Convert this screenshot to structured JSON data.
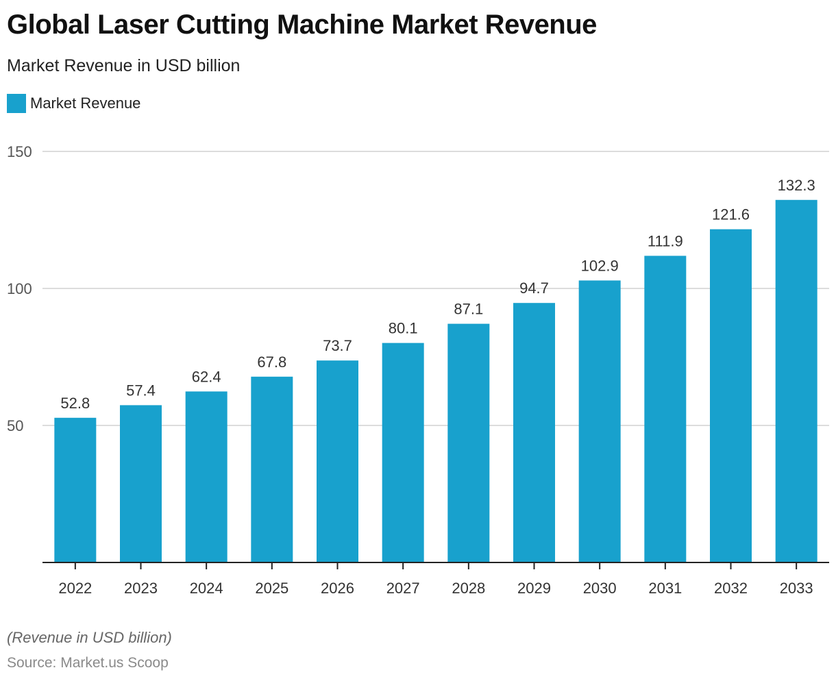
{
  "title": "Global Laser Cutting Machine Market Revenue",
  "subtitle": "Market Revenue in USD billion",
  "note": "(Revenue in USD billion)",
  "source": "Source: Market.us Scoop",
  "colors": {
    "bar": "#18a1cd",
    "grid": "#d0d0d0",
    "axis": "#222222"
  },
  "chart_data": {
    "type": "bar",
    "categories": [
      "2022",
      "2023",
      "2024",
      "2025",
      "2026",
      "2027",
      "2028",
      "2029",
      "2030",
      "2031",
      "2032",
      "2033"
    ],
    "series": [
      {
        "name": "Market Revenue",
        "values": [
          52.8,
          57.4,
          62.4,
          67.8,
          73.7,
          80.1,
          87.1,
          94.7,
          102.9,
          111.9,
          121.6,
          132.3
        ]
      }
    ],
    "data_labels": [
      "52.8",
      "57.4",
      "62.4",
      "67.8",
      "73.7",
      "80.1",
      "87.1",
      "94.7",
      "102.9",
      "111.9",
      "121.6",
      "132.3"
    ],
    "yticks": [
      50,
      100,
      150
    ],
    "ylim": [
      0,
      150
    ],
    "grid": true,
    "legend_placement": "top-left"
  }
}
